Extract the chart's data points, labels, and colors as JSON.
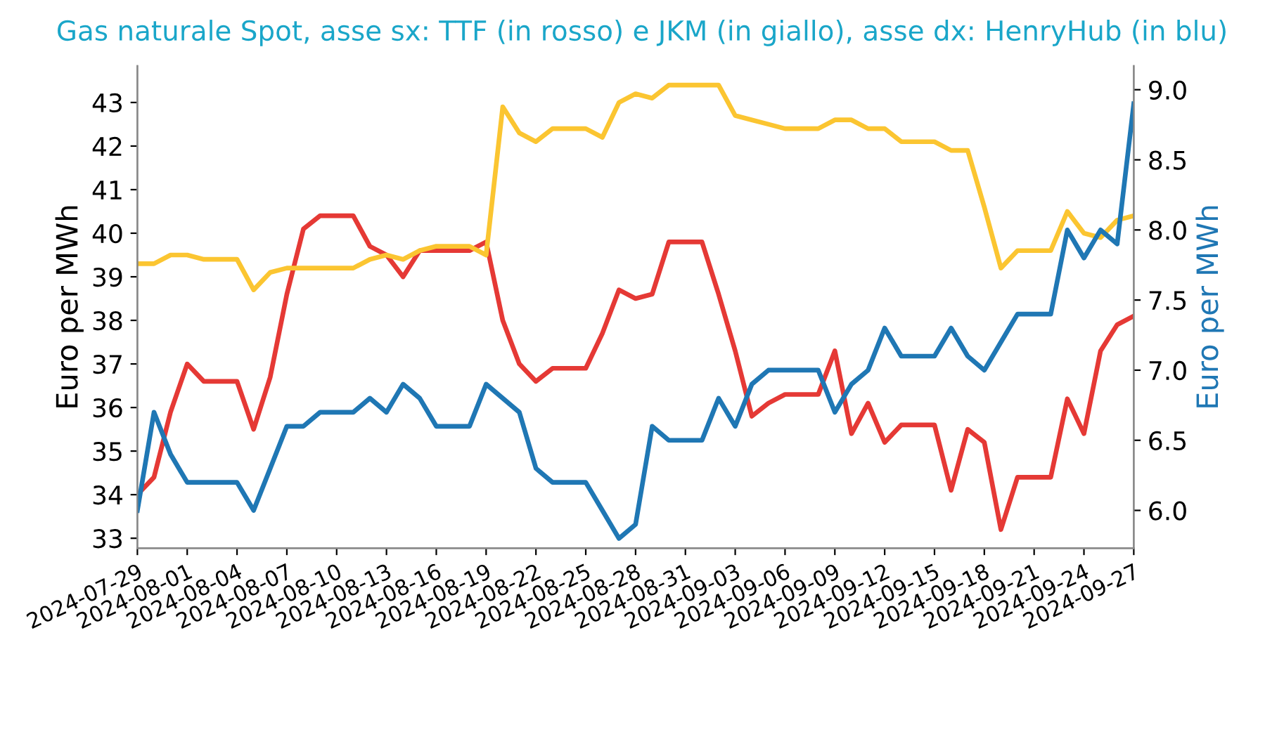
{
  "chart_data": {
    "type": "line",
    "title": "Gas naturale Spot, asse sx: TTF (in rosso) e JKM (in giallo), asse dx: HenryHub (in blu)",
    "ylabel": "Euro per MWh",
    "y2label": "Euro per MWh",
    "x": [
      "2024-07-29",
      "2024-07-30",
      "2024-07-31",
      "2024-08-01",
      "2024-08-02",
      "2024-08-03",
      "2024-08-04",
      "2024-08-05",
      "2024-08-06",
      "2024-08-07",
      "2024-08-08",
      "2024-08-09",
      "2024-08-10",
      "2024-08-11",
      "2024-08-12",
      "2024-08-13",
      "2024-08-14",
      "2024-08-15",
      "2024-08-16",
      "2024-08-17",
      "2024-08-18",
      "2024-08-19",
      "2024-08-20",
      "2024-08-21",
      "2024-08-22",
      "2024-08-23",
      "2024-08-24",
      "2024-08-25",
      "2024-08-26",
      "2024-08-27",
      "2024-08-28",
      "2024-08-29",
      "2024-08-30",
      "2024-08-31",
      "2024-09-01",
      "2024-09-02",
      "2024-09-03",
      "2024-09-04",
      "2024-09-05",
      "2024-09-06",
      "2024-09-07",
      "2024-09-08",
      "2024-09-09",
      "2024-09-10",
      "2024-09-11",
      "2024-09-12",
      "2024-09-13",
      "2024-09-14",
      "2024-09-15",
      "2024-09-16",
      "2024-09-17",
      "2024-09-18",
      "2024-09-19",
      "2024-09-20",
      "2024-09-21",
      "2024-09-22",
      "2024-09-23",
      "2024-09-24",
      "2024-09-25",
      "2024-09-26",
      "2024-09-27"
    ],
    "series": [
      {
        "color": "#e53935",
        "values": [
          34.0,
          34.4,
          35.9,
          37.0,
          36.6,
          36.6,
          36.6,
          35.5,
          36.7,
          38.6,
          40.1,
          40.4,
          40.4,
          40.4,
          39.7,
          39.5,
          39.0,
          39.6,
          39.6,
          39.6,
          39.6,
          39.8,
          38.0,
          37.0,
          36.6,
          36.9,
          36.9,
          36.9,
          37.7,
          38.7,
          38.5,
          38.6,
          39.8,
          39.8,
          39.8,
          38.6,
          37.3,
          35.8,
          36.1,
          36.3,
          36.3,
          36.3,
          37.3,
          35.4,
          36.1,
          35.2,
          35.6,
          35.6,
          35.6,
          34.1,
          35.5,
          35.2,
          33.2,
          34.4,
          34.4,
          34.4,
          36.2,
          35.4,
          37.3,
          37.9,
          38.1
        ]
      },
      {
        "color": "#fbc531",
        "values": [
          39.3,
          39.3,
          39.5,
          39.5,
          39.4,
          39.4,
          39.4,
          38.7,
          39.1,
          39.2,
          39.2,
          39.2,
          39.2,
          39.2,
          39.4,
          39.5,
          39.4,
          39.6,
          39.7,
          39.7,
          39.7,
          39.5,
          42.9,
          42.3,
          42.1,
          42.4,
          42.4,
          42.4,
          42.2,
          43.0,
          43.2,
          43.1,
          43.4,
          43.4,
          43.4,
          43.4,
          42.7,
          42.6,
          42.5,
          42.4,
          42.4,
          42.4,
          42.6,
          42.6,
          42.4,
          42.4,
          42.1,
          42.1,
          42.1,
          41.9,
          41.9,
          40.6,
          39.2,
          39.6,
          39.6,
          39.6,
          40.5,
          40.0,
          39.9,
          40.3,
          40.4
        ]
      },
      {
        "color": "#1f77b4",
        "axis": "y2",
        "values": [
          6.0,
          6.7,
          6.4,
          6.2,
          6.2,
          6.2,
          6.2,
          6.0,
          6.3,
          6.6,
          6.6,
          6.7,
          6.7,
          6.7,
          6.8,
          6.7,
          6.9,
          6.8,
          6.6,
          6.6,
          6.6,
          6.9,
          6.8,
          6.7,
          6.3,
          6.2,
          6.2,
          6.2,
          6.0,
          5.8,
          5.9,
          6.6,
          6.5,
          6.5,
          6.5,
          6.8,
          6.6,
          6.9,
          7.0,
          7.0,
          7.0,
          7.0,
          6.7,
          6.9,
          7.0,
          7.3,
          7.1,
          7.1,
          7.1,
          7.3,
          7.1,
          7.0,
          7.2,
          7.4,
          7.4,
          7.4,
          8.0,
          7.8,
          8.0,
          7.9,
          8.9
        ]
      }
    ],
    "xlim": [
      "2024-07-29",
      "2024-09-27"
    ],
    "xticks": [
      "2024-07-29",
      "2024-08-01",
      "2024-08-04",
      "2024-08-07",
      "2024-08-10",
      "2024-08-13",
      "2024-08-16",
      "2024-08-19",
      "2024-08-22",
      "2024-08-25",
      "2024-08-28",
      "2024-08-31",
      "2024-09-03",
      "2024-09-06",
      "2024-09-09",
      "2024-09-12",
      "2024-09-15",
      "2024-09-18",
      "2024-09-21",
      "2024-09-24",
      "2024-09-27"
    ],
    "ylim": [
      32.77,
      43.84
    ],
    "yticks": [
      33,
      34,
      35,
      36,
      37,
      38,
      39,
      40,
      41,
      42,
      43
    ],
    "y2lim": [
      5.73,
      9.17
    ],
    "y2ticks": [
      {
        "value": 6,
        "label": "6.0"
      },
      6.5,
      {
        "value": 7,
        "label": "7.0"
      },
      7.5,
      {
        "value": 8,
        "label": "8.0"
      },
      8.5,
      {
        "value": 9,
        "label": "9.0"
      }
    ],
    "grid": false,
    "marker": "none",
    "line_style": "solid"
  }
}
